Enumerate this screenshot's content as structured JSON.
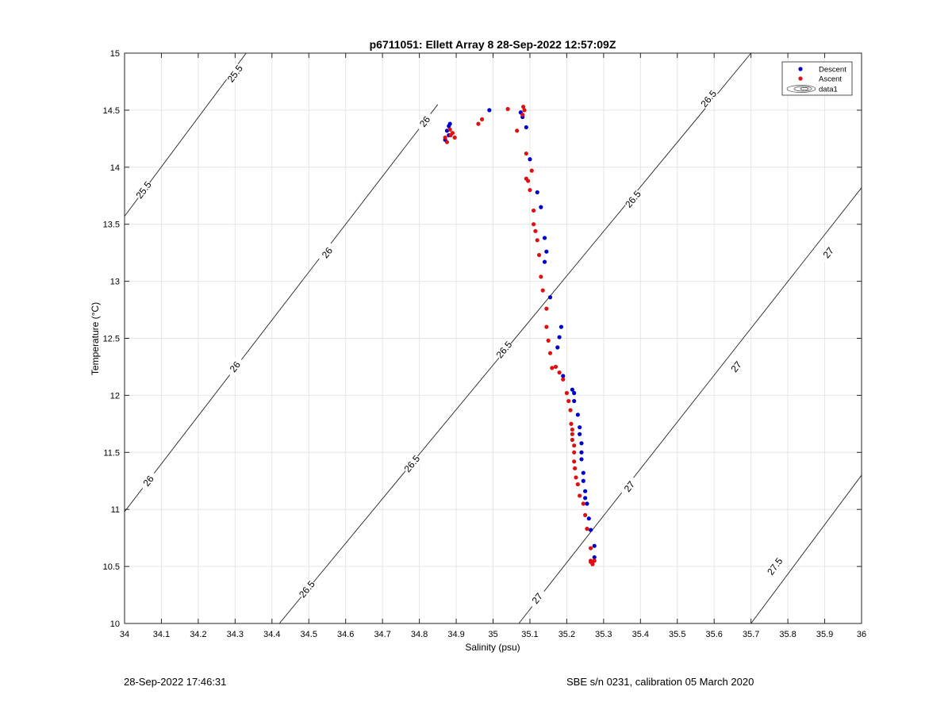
{
  "chart_data": {
    "type": "scatter",
    "title": "p6711051: Ellett Array 8 28-Sep-2022 12:57:09Z",
    "xlabel": "Salinity (psu)",
    "ylabel": "Temperature (°C)",
    "xlim": [
      34,
      36
    ],
    "ylim": [
      10,
      15
    ],
    "xticks": [
      "34",
      "34.1",
      "34.2",
      "34.3",
      "34.4",
      "34.5",
      "34.6",
      "34.7",
      "34.8",
      "34.9",
      "35",
      "35.1",
      "35.2",
      "35.3",
      "35.4",
      "35.5",
      "35.6",
      "35.7",
      "35.8",
      "35.9",
      "36"
    ],
    "yticks": [
      "10",
      "10.5",
      "11",
      "11.5",
      "12",
      "12.5",
      "13",
      "13.5",
      "14",
      "14.5",
      "15"
    ],
    "grid": true,
    "legend_position": "top-right",
    "legend": [
      "Descent",
      "Ascent",
      "data1"
    ],
    "series": [
      {
        "name": "Descent",
        "color": "#0000cc",
        "x": [
          34.87,
          34.88,
          34.875,
          34.88,
          34.883,
          34.99,
          35.075,
          35.08,
          35.09,
          35.1,
          35.12,
          35.13,
          35.14,
          35.145,
          35.14,
          35.155,
          35.175,
          35.18,
          35.185,
          35.19,
          35.215,
          35.22,
          35.22,
          35.23,
          35.235,
          35.235,
          35.24,
          35.24,
          35.24,
          35.245,
          35.245,
          35.25,
          35.25,
          35.255,
          35.26,
          35.265,
          35.275,
          35.275,
          35.27
        ],
        "y": [
          14.24,
          14.28,
          14.32,
          14.36,
          14.38,
          14.5,
          14.48,
          14.44,
          14.35,
          14.07,
          13.78,
          13.65,
          13.38,
          13.26,
          13.17,
          12.86,
          12.42,
          12.51,
          12.6,
          12.17,
          12.05,
          12.02,
          11.95,
          11.83,
          11.72,
          11.66,
          11.58,
          11.5,
          11.44,
          11.32,
          11.25,
          11.16,
          11.1,
          11.05,
          10.92,
          10.82,
          10.68,
          10.58,
          10.54
        ]
      },
      {
        "name": "Ascent",
        "color": "#dd1111",
        "x": [
          34.875,
          34.87,
          34.885,
          34.89,
          34.883,
          34.896,
          34.96,
          34.97,
          35.04,
          35.065,
          35.08,
          35.082,
          35.085,
          35.09,
          35.09,
          35.095,
          35.1,
          35.105,
          35.11,
          35.11,
          35.115,
          35.12,
          35.125,
          35.13,
          35.135,
          35.145,
          35.145,
          35.15,
          35.155,
          35.16,
          35.17,
          35.18,
          35.19,
          35.2,
          35.205,
          35.21,
          35.212,
          35.215,
          35.215,
          35.215,
          35.22,
          35.22,
          35.22,
          35.222,
          35.225,
          35.23,
          35.235,
          35.245,
          35.25,
          35.255,
          35.265,
          35.27,
          35.265,
          35.265,
          35.275
        ],
        "y": [
          14.22,
          14.26,
          14.28,
          14.3,
          14.33,
          14.26,
          14.38,
          14.42,
          14.51,
          14.32,
          14.46,
          14.53,
          14.5,
          14.12,
          13.9,
          13.88,
          13.8,
          13.97,
          13.62,
          13.5,
          13.44,
          13.36,
          13.23,
          13.04,
          12.92,
          12.76,
          12.6,
          12.48,
          12.37,
          12.24,
          12.25,
          12.2,
          12.14,
          12.02,
          11.95,
          11.87,
          11.75,
          11.7,
          11.66,
          11.61,
          11.56,
          11.5,
          11.42,
          11.36,
          11.28,
          11.22,
          11.12,
          11.05,
          10.95,
          10.83,
          10.66,
          10.52,
          10.54,
          10.55,
          10.55
        ]
      }
    ],
    "contours": [
      {
        "label": "25.5",
        "p1": [
          34.0,
          13.57
        ],
        "p2": [
          34.33,
          15.0
        ],
        "labels": [
          [
            34.052,
            13.8
          ],
          [
            34.3,
            14.82
          ]
        ]
      },
      {
        "label": "26",
        "p1": [
          34.0,
          10.98
        ],
        "p2": [
          34.85,
          14.55
        ],
        "labels": [
          [
            34.065,
            11.25
          ],
          [
            34.3,
            12.25
          ],
          [
            34.55,
            13.25
          ],
          [
            34.815,
            14.4
          ]
        ]
      },
      {
        "label": "26.5",
        "p1": [
          34.42,
          10.0
        ],
        "p2": [
          35.7,
          15.0
        ],
        "labels": [
          [
            34.495,
            10.3
          ],
          [
            34.78,
            11.4
          ],
          [
            35.03,
            12.4
          ],
          [
            35.38,
            13.72
          ],
          [
            35.585,
            14.6
          ]
        ]
      },
      {
        "label": "27",
        "p1": [
          35.07,
          10.0
        ],
        "p2": [
          36.0,
          13.82
        ],
        "labels": [
          [
            35.12,
            10.22
          ],
          [
            35.37,
            11.2
          ],
          [
            35.66,
            12.25
          ],
          [
            35.91,
            13.25
          ]
        ]
      },
      {
        "label": "27.5",
        "p1": [
          35.7,
          10.0
        ],
        "p2": [
          36.0,
          11.3
        ],
        "labels": [
          [
            35.765,
            10.5
          ]
        ]
      }
    ]
  },
  "footer": {
    "left": "28-Sep-2022 17:46:31",
    "right": "SBE s/n 0231, calibration 05 March 2020"
  }
}
